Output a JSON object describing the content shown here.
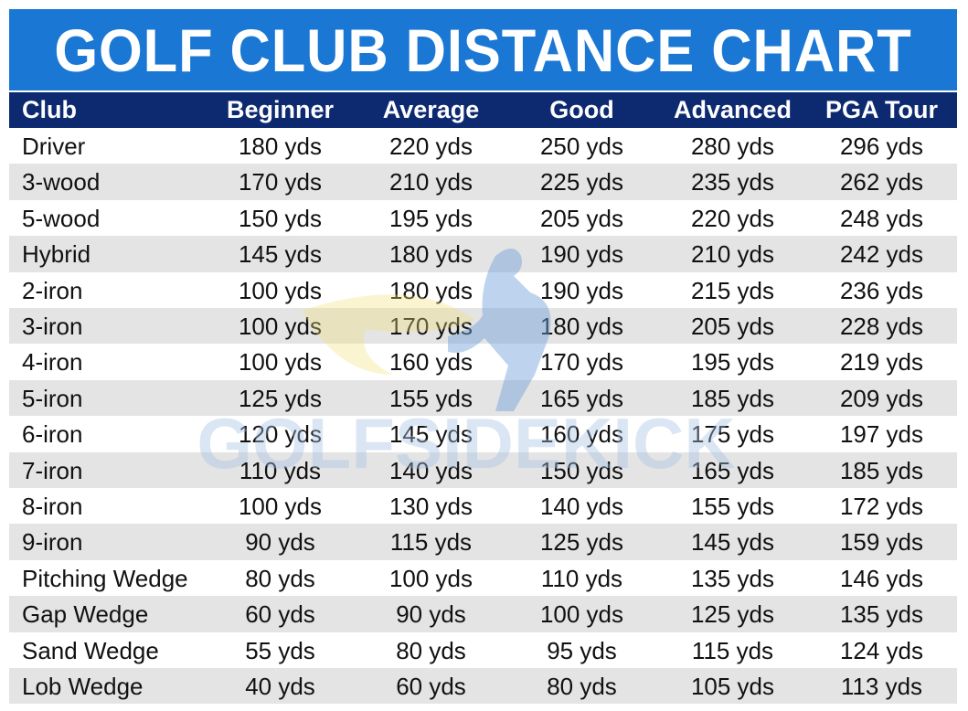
{
  "chart_data": {
    "type": "table",
    "title": "GOLF CLUB DISTANCE CHART",
    "columns": [
      "Club",
      "Beginner",
      "Average",
      "Good",
      "Advanced",
      "PGA Tour"
    ],
    "rows": [
      [
        "Driver",
        "180 yds",
        "220 yds",
        "250 yds",
        "280 yds",
        "296 yds"
      ],
      [
        "3-wood",
        "170 yds",
        "210 yds",
        "225 yds",
        "235 yds",
        "262 yds"
      ],
      [
        "5-wood",
        "150 yds",
        "195 yds",
        "205 yds",
        "220 yds",
        "248 yds"
      ],
      [
        "Hybrid",
        "145 yds",
        "180 yds",
        "190 yds",
        "210 yds",
        "242 yds"
      ],
      [
        "2-iron",
        "100 yds",
        "180 yds",
        "190 yds",
        "215 yds",
        "236 yds"
      ],
      [
        "3-iron",
        "100 yds",
        "170 yds",
        "180 yds",
        "205 yds",
        "228 yds"
      ],
      [
        "4-iron",
        "100 yds",
        "160 yds",
        "170 yds",
        "195 yds",
        "219 yds"
      ],
      [
        "5-iron",
        "125 yds",
        "155 yds",
        "165 yds",
        "185 yds",
        "209 yds"
      ],
      [
        "6-iron",
        "120 yds",
        "145 yds",
        "160 yds",
        "175 yds",
        "197 yds"
      ],
      [
        "7-iron",
        "110 yds",
        "140 yds",
        "150 yds",
        "165 yds",
        "185 yds"
      ],
      [
        "8-iron",
        "100 yds",
        "130 yds",
        "140 yds",
        "155 yds",
        "172 yds"
      ],
      [
        "9-iron",
        "90 yds",
        "115 yds",
        "125 yds",
        "145 yds",
        "159 yds"
      ],
      [
        "Pitching Wedge",
        "80 yds",
        "100 yds",
        "110 yds",
        "135 yds",
        "146 yds"
      ],
      [
        "Gap Wedge",
        "60 yds",
        "90 yds",
        "100 yds",
        "125 yds",
        "135 yds"
      ],
      [
        "Sand Wedge",
        "55 yds",
        "80 yds",
        "95 yds",
        "115 yds",
        "124 yds"
      ],
      [
        "Lob Wedge",
        "40 yds",
        "60 yds",
        "80 yds",
        "105 yds",
        "113 yds"
      ]
    ]
  },
  "watermark": {
    "text": "GOLFSIDEKICK"
  },
  "colors": {
    "title_bg": "#1a78d4",
    "header_bg": "#0d2970",
    "row_alt_bg": "#e4e4e4",
    "text": "#111111"
  }
}
